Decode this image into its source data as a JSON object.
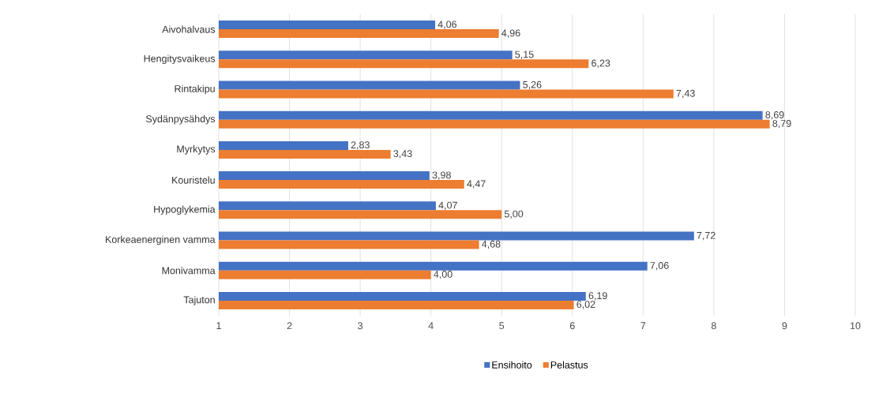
{
  "chart_data": {
    "type": "bar",
    "orientation": "horizontal",
    "categories": [
      "Aivohalvaus",
      "Hengitysvaikeus",
      "Rintakipu",
      "Sydänpysähdys",
      "Myrkytys",
      "Kouristelu",
      "Hypoglykemia",
      "Korkeaenerginen vamma",
      "Monivamma",
      "Tajuton"
    ],
    "series": [
      {
        "name": "Ensihoito",
        "color": "#4472c4",
        "values": [
          4.06,
          5.15,
          5.26,
          8.69,
          2.83,
          3.98,
          4.07,
          7.72,
          7.06,
          6.19
        ],
        "value_labels": [
          "4,06",
          "5,15",
          "5,26",
          "8,69",
          "2,83",
          "3,98",
          "4,07",
          "7,72",
          "7,06",
          "6,19"
        ]
      },
      {
        "name": "Pelastus",
        "color": "#ed7d31",
        "values": [
          4.96,
          6.23,
          7.43,
          8.79,
          3.43,
          4.47,
          5.0,
          4.68,
          4.0,
          6.02
        ],
        "value_labels": [
          "4,96",
          "6,23",
          "7,43",
          "8,79",
          "3,43",
          "4,47",
          "5,00",
          "4,68",
          "4,00",
          "6,02"
        ]
      }
    ],
    "xlim": [
      1,
      10
    ],
    "xticks": [
      1,
      2,
      3,
      4,
      5,
      6,
      7,
      8,
      9,
      10
    ],
    "grid": "x",
    "legend": "bottom"
  }
}
